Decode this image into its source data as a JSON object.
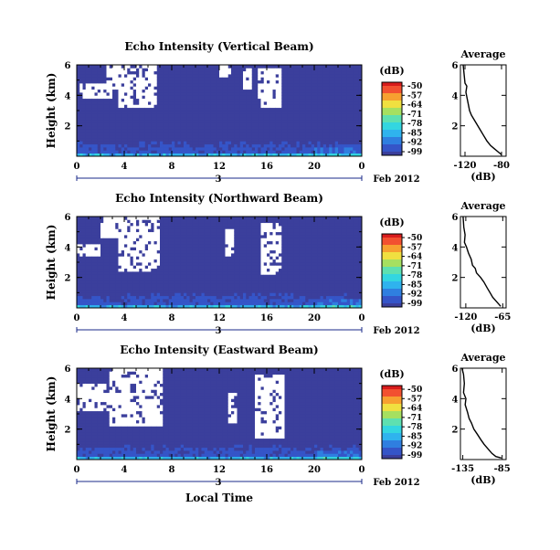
{
  "figure": {
    "bottom_xlabel": "Local Time",
    "day_label": "3",
    "date_label": "Feb 2012",
    "colorbar_unit": "(dB)",
    "colorbar_ticks": [
      "-50",
      "-57",
      "-64",
      "-71",
      "-78",
      "-85",
      "-92",
      "-99"
    ],
    "colors": {
      "colormap": [
        "#3b3f9c",
        "#3555c8",
        "#2f7fe0",
        "#2fb3ee",
        "#33d6e0",
        "#5ee0b0",
        "#a6e060",
        "#f0e040",
        "#f7a030",
        "#f25030",
        "#d81c1c"
      ],
      "missing": "#ffffff"
    }
  },
  "chart_data": [
    {
      "type": "heatmap",
      "title": "Echo Intensity (Vertical Beam)",
      "ylabel": "Height (km)",
      "xlabel": "",
      "x_ticks": [
        "0",
        "4",
        "8",
        "12",
        "16",
        "20",
        "0"
      ],
      "y_ticks": [
        "6",
        "4",
        "2"
      ],
      "xlim": [
        0,
        24
      ],
      "ylim": [
        0,
        6
      ],
      "color_range": [
        -99,
        -50
      ],
      "surface_band_top_km": 0.3,
      "near_surface_enhancement_km": 1.0,
      "missing_regions_km": [
        {
          "x": [
            3.5,
            6.8
          ],
          "y": [
            3.2,
            6.0
          ]
        },
        {
          "x": [
            0.3,
            3.0
          ],
          "y": [
            3.8,
            4.8
          ]
        },
        {
          "x": [
            2.5,
            3.5
          ],
          "y": [
            4.5,
            6.0
          ]
        },
        {
          "x": [
            15.2,
            17.2
          ],
          "y": [
            3.2,
            5.8
          ]
        },
        {
          "x": [
            12.0,
            13.0
          ],
          "y": [
            5.2,
            6.0
          ]
        },
        {
          "x": [
            14.0,
            14.8
          ],
          "y": [
            4.4,
            5.8
          ]
        }
      ],
      "average_profile": {
        "title": "Average",
        "xlabel": "(dB)",
        "x_ticks": [
          "-120",
          "-80"
        ],
        "y_ticks": [
          "6",
          "4",
          "2"
        ],
        "xlim": [
          -125,
          -75
        ],
        "ylim": [
          0,
          6
        ],
        "x": [
          -122,
          -121,
          -120,
          -118,
          -119,
          -117,
          -115,
          -113,
          -110,
          -107,
          -104,
          -100,
          -96,
          -92,
          -88,
          -84,
          -80
        ],
        "y": [
          6.0,
          5.4,
          4.8,
          4.6,
          4.2,
          3.6,
          3.0,
          2.7,
          2.4,
          2.1,
          1.8,
          1.4,
          1.0,
          0.7,
          0.5,
          0.3,
          0.1
        ]
      }
    },
    {
      "type": "heatmap",
      "title": "Echo Intensity (Northward Beam)",
      "ylabel": "Height (km)",
      "xlabel": "",
      "x_ticks": [
        "0",
        "4",
        "8",
        "12",
        "16",
        "20",
        "0"
      ],
      "y_ticks": [
        "6",
        "4",
        "2"
      ],
      "xlim": [
        0,
        24
      ],
      "ylim": [
        0,
        6
      ],
      "color_range": [
        -99,
        -50
      ],
      "surface_band_top_km": 0.3,
      "near_surface_enhancement_km": 1.0,
      "missing_regions_km": [
        {
          "x": [
            3.5,
            7.0
          ],
          "y": [
            2.4,
            6.0
          ]
        },
        {
          "x": [
            2.0,
            3.5
          ],
          "y": [
            4.6,
            6.0
          ]
        },
        {
          "x": [
            0.0,
            2.0
          ],
          "y": [
            3.5,
            4.2
          ]
        },
        {
          "x": [
            15.5,
            17.2
          ],
          "y": [
            2.2,
            5.5
          ]
        },
        {
          "x": [
            12.5,
            13.2
          ],
          "y": [
            3.4,
            5.2
          ]
        }
      ],
      "average_profile": {
        "title": "Average",
        "xlabel": "(dB)",
        "x_ticks": [
          "-120",
          "-65"
        ],
        "y_ticks": [
          "6",
          "4",
          "2"
        ],
        "xlim": [
          -128,
          -60
        ],
        "ylim": [
          0,
          6
        ],
        "x": [
          -124,
          -123,
          -121,
          -122,
          -119,
          -116,
          -112,
          -110,
          -106,
          -104,
          -98,
          -93,
          -88,
          -84,
          -80,
          -74,
          -68
        ],
        "y": [
          6.0,
          5.3,
          4.8,
          4.3,
          4.0,
          3.6,
          3.2,
          2.8,
          2.6,
          2.3,
          2.0,
          1.7,
          1.3,
          1.0,
          0.7,
          0.4,
          0.1
        ]
      }
    },
    {
      "type": "heatmap",
      "title": "Echo Intensity (Eastward Beam)",
      "ylabel": "Height (km)",
      "xlabel": "",
      "x_ticks": [
        "0",
        "4",
        "8",
        "12",
        "16",
        "20",
        "0"
      ],
      "y_ticks": [
        "6",
        "4",
        "2"
      ],
      "xlim": [
        0,
        24
      ],
      "ylim": [
        0,
        6
      ],
      "color_range": [
        -99,
        -50
      ],
      "surface_band_top_km": 0.3,
      "near_surface_enhancement_km": 1.0,
      "missing_regions_km": [
        {
          "x": [
            2.8,
            7.2
          ],
          "y": [
            2.3,
            6.0
          ]
        },
        {
          "x": [
            0.0,
            2.8
          ],
          "y": [
            3.2,
            5.0
          ]
        },
        {
          "x": [
            15.0,
            17.5
          ],
          "y": [
            1.5,
            5.6
          ]
        },
        {
          "x": [
            12.8,
            13.4
          ],
          "y": [
            2.5,
            4.4
          ]
        }
      ],
      "average_profile": {
        "title": "Average",
        "xlabel": "(dB)",
        "x_ticks": [
          "-135",
          "-85"
        ],
        "y_ticks": [
          "6",
          "4",
          "2"
        ],
        "xlim": [
          -138,
          -80
        ],
        "ylim": [
          0,
          6
        ],
        "x": [
          -136,
          -134,
          -133,
          -134,
          -131,
          -132,
          -129,
          -127,
          -124,
          -121,
          -117,
          -112,
          -108,
          -103,
          -98,
          -93,
          -86
        ],
        "y": [
          6.0,
          5.6,
          5.0,
          4.4,
          4.0,
          3.6,
          3.1,
          2.7,
          2.4,
          2.0,
          1.7,
          1.3,
          1.0,
          0.7,
          0.4,
          0.2,
          0.1
        ]
      }
    }
  ]
}
